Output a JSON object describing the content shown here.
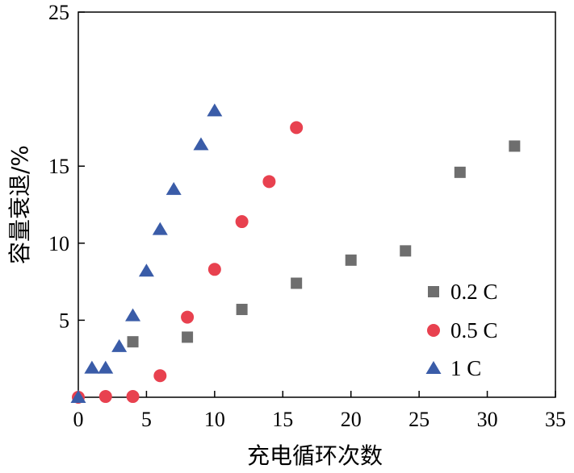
{
  "chart_data": {
    "type": "scatter",
    "title": "",
    "xlabel": "充电循环次数",
    "ylabel": "容量衰退/%",
    "xlim": [
      0,
      35
    ],
    "ylim": [
      0,
      25
    ],
    "x_ticks": [
      "0",
      "5",
      "10",
      "15",
      "20",
      "25",
      "30",
      "35"
    ],
    "y_ticks": [
      "5",
      "10",
      "15",
      "25"
    ],
    "grid": false,
    "legend_position": "bottom-right",
    "series": [
      {
        "name": "0.2 C",
        "marker": "square",
        "color": "#6e6e6e",
        "points": [
          [
            4,
            3.6
          ],
          [
            8,
            3.9
          ],
          [
            12,
            5.7
          ],
          [
            16,
            7.4
          ],
          [
            20,
            8.9
          ],
          [
            24,
            9.5
          ],
          [
            28,
            14.6
          ],
          [
            32,
            16.3
          ]
        ]
      },
      {
        "name": "0.5 C",
        "marker": "circle",
        "color": "#e8414f",
        "points": [
          [
            0,
            0
          ],
          [
            2,
            0.05
          ],
          [
            4,
            0.05
          ],
          [
            6,
            1.4
          ],
          [
            8,
            5.2
          ],
          [
            10,
            8.3
          ],
          [
            12,
            11.4
          ],
          [
            14,
            14.0
          ],
          [
            16,
            17.5
          ]
        ]
      },
      {
        "name": "1 C",
        "marker": "triangle",
        "color": "#3a5ca8",
        "points": [
          [
            0,
            0
          ],
          [
            1,
            1.9
          ],
          [
            2,
            1.9
          ],
          [
            3,
            3.3
          ],
          [
            4,
            5.3
          ],
          [
            5,
            8.2
          ],
          [
            6,
            10.9
          ],
          [
            7,
            13.5
          ],
          [
            9,
            16.4
          ],
          [
            10,
            18.6
          ]
        ]
      }
    ]
  }
}
